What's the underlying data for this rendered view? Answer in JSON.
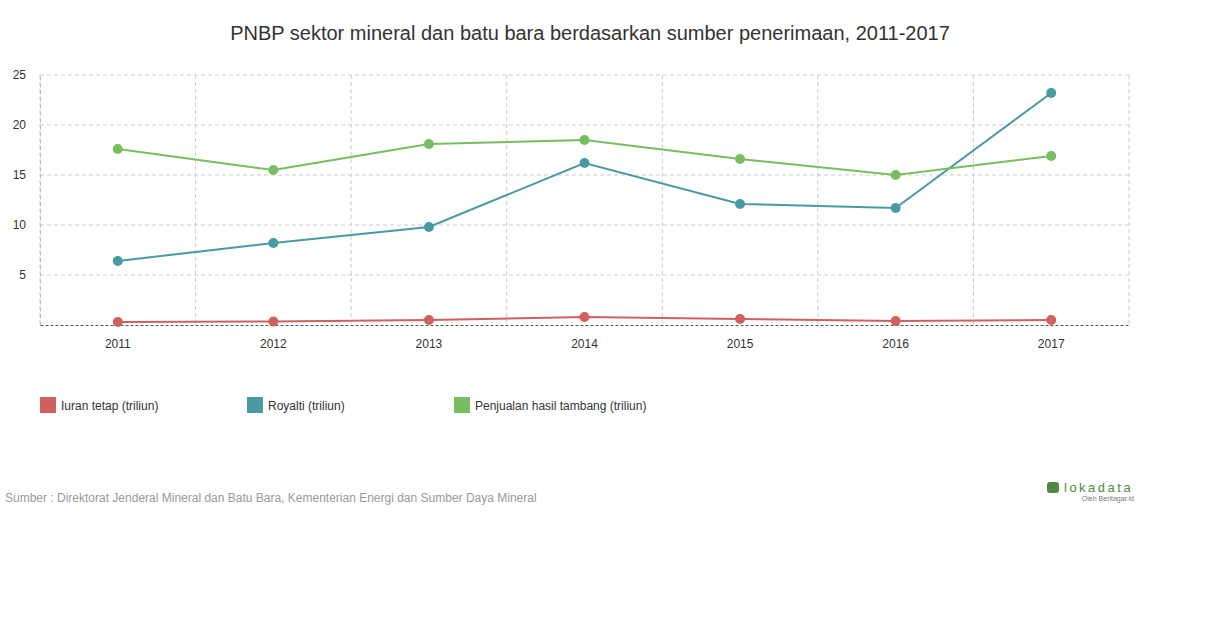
{
  "chart_data": {
    "type": "line",
    "title": "PNBP sektor mineral dan batu bara berdasarkan sumber penerimaan, 2011-2017",
    "categories": [
      "2011",
      "2012",
      "2013",
      "2014",
      "2015",
      "2016",
      "2017"
    ],
    "series": [
      {
        "name": "Iuran tetap (triliun)",
        "color": "#d0605e",
        "marker": "circle",
        "values": [
          0.3,
          0.35,
          0.5,
          0.8,
          0.6,
          0.4,
          0.5
        ]
      },
      {
        "name": "Royalti (triliun)",
        "color": "#4a9aa5",
        "marker": "circle",
        "values": [
          6.4,
          8.2,
          9.8,
          16.2,
          12.1,
          11.7,
          23.2
        ]
      },
      {
        "name": "Penjualan hasil tambang (triliun)",
        "color": "#78be5f",
        "marker": "circle",
        "values": [
          17.6,
          15.5,
          18.1,
          18.5,
          16.6,
          15.0,
          16.9
        ]
      }
    ],
    "ylim": [
      0,
      25
    ],
    "yticks": [
      5,
      10,
      15,
      20,
      25
    ],
    "grid": true,
    "legend": "bottom-left",
    "source": "Sumber : Direktorat Jenderal Mineral dan Batu Bara, Kementerian Energi dan Sumber Daya Mineral",
    "logo": "lokadata",
    "logo_subtitle": "Oleh Beritagar.id"
  }
}
